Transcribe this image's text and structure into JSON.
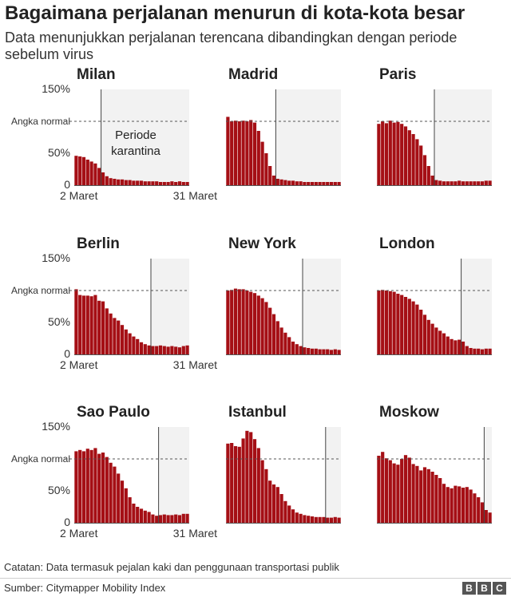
{
  "title": "Bagaimana perjalanan menurun di kota-kota besar",
  "subtitle": "Data menunjukkan perjalanan terencana dibandingkan dengan periode sebelum virus",
  "note": "Catatan: Data termasuk pejalan kaki dan penggunaan transportasi publik",
  "source": "Sumber: Citymapper Mobility Index",
  "logo": [
    "B",
    "B",
    "C"
  ],
  "colors": {
    "bar": "#a50f15",
    "shade": "#f2f2f2",
    "text": "#222222"
  },
  "chart_data": [
    {
      "type": "bar",
      "city": "Milan",
      "x_start": "2 Maret",
      "x_end": "31 Maret",
      "y_ticks": [
        "150%",
        "Angka normal",
        "50%",
        "0"
      ],
      "normal_level": 100,
      "ylim": [
        0,
        150
      ],
      "lockdown_day": 7,
      "annotation": [
        "Periode",
        "karantina"
      ],
      "values": [
        46,
        45,
        44,
        40,
        37,
        34,
        27,
        20,
        14,
        11,
        10,
        9,
        9,
        8,
        8,
        7,
        7,
        7,
        6,
        6,
        6,
        6,
        5,
        5,
        5,
        6,
        5,
        6,
        5,
        5
      ]
    },
    {
      "type": "bar",
      "city": "Madrid",
      "x_start": "",
      "x_end": "",
      "y_ticks": [],
      "normal_level": 100,
      "ylim": [
        0,
        150
      ],
      "lockdown_day": 13,
      "annotation": [],
      "values": [
        107,
        100,
        101,
        100,
        101,
        100,
        102,
        98,
        85,
        68,
        50,
        30,
        15,
        10,
        9,
        8,
        7,
        7,
        6,
        6,
        5,
        5,
        5,
        5,
        5,
        5,
        5,
        5,
        5,
        5
      ]
    },
    {
      "type": "bar",
      "city": "Paris",
      "x_start": "",
      "x_end": "",
      "y_ticks": [],
      "normal_level": 100,
      "ylim": [
        0,
        150
      ],
      "lockdown_day": 15,
      "annotation": [],
      "values": [
        96,
        100,
        97,
        101,
        98,
        99,
        96,
        92,
        86,
        80,
        72,
        62,
        47,
        30,
        15,
        8,
        7,
        6,
        6,
        6,
        6,
        7,
        6,
        6,
        6,
        6,
        6,
        6,
        7,
        7
      ]
    },
    {
      "type": "bar",
      "city": "Berlin",
      "x_start": "2 Maret",
      "x_end": "31 Maret",
      "y_ticks": [
        "150%",
        "Angka normal",
        "50%",
        "0"
      ],
      "normal_level": 100,
      "ylim": [
        0,
        150
      ],
      "lockdown_day": 20,
      "annotation": [],
      "values": [
        102,
        93,
        92,
        92,
        91,
        93,
        84,
        83,
        72,
        64,
        57,
        53,
        46,
        39,
        33,
        28,
        24,
        19,
        16,
        14,
        13,
        13,
        14,
        13,
        12,
        13,
        12,
        11,
        13,
        14
      ]
    },
    {
      "type": "bar",
      "city": "New York",
      "x_start": "",
      "x_end": "",
      "y_ticks": [],
      "normal_level": 100,
      "ylim": [
        0,
        150
      ],
      "lockdown_day": 20,
      "annotation": [],
      "values": [
        100,
        101,
        103,
        102,
        102,
        100,
        98,
        96,
        92,
        88,
        82,
        73,
        63,
        52,
        42,
        34,
        27,
        20,
        16,
        13,
        11,
        10,
        9,
        9,
        8,
        8,
        8,
        7,
        8,
        7
      ]
    },
    {
      "type": "bar",
      "city": "London",
      "x_start": "",
      "x_end": "",
      "y_ticks": [],
      "normal_level": 100,
      "ylim": [
        0,
        150
      ],
      "lockdown_day": 22,
      "annotation": [],
      "values": [
        100,
        101,
        100,
        99,
        98,
        95,
        93,
        90,
        87,
        83,
        78,
        70,
        62,
        54,
        48,
        42,
        37,
        33,
        28,
        24,
        22,
        23,
        20,
        13,
        10,
        9,
        9,
        8,
        9,
        9
      ]
    },
    {
      "type": "bar",
      "city": "Sao Paulo",
      "x_start": "2 Maret",
      "x_end": "31 Maret",
      "y_ticks": [
        "150%",
        "Angka normal",
        "50%",
        "0"
      ],
      "normal_level": 100,
      "ylim": [
        0,
        150
      ],
      "lockdown_day": 22,
      "annotation": [],
      "values": [
        112,
        114,
        112,
        116,
        114,
        117,
        108,
        110,
        103,
        94,
        88,
        77,
        66,
        54,
        40,
        30,
        25,
        22,
        19,
        17,
        13,
        11,
        12,
        13,
        12,
        12,
        13,
        12,
        14,
        14
      ]
    },
    {
      "type": "bar",
      "city": "Istanbul",
      "x_start": "",
      "x_end": "",
      "y_ticks": [],
      "normal_level": 100,
      "ylim": [
        0,
        150
      ],
      "lockdown_day": 26,
      "annotation": [],
      "values": [
        124,
        125,
        120,
        119,
        132,
        144,
        142,
        131,
        117,
        98,
        84,
        66,
        60,
        56,
        45,
        34,
        27,
        21,
        16,
        14,
        12,
        11,
        10,
        9,
        9,
        9,
        8,
        8,
        9,
        8
      ]
    },
    {
      "type": "bar",
      "city": "Moskow",
      "x_start": "",
      "x_end": "",
      "y_ticks": [],
      "normal_level": 100,
      "ylim": [
        0,
        150
      ],
      "lockdown_day": 28,
      "annotation": [],
      "values": [
        105,
        111,
        101,
        98,
        93,
        91,
        100,
        106,
        102,
        92,
        89,
        82,
        87,
        84,
        80,
        75,
        70,
        61,
        56,
        54,
        58,
        57,
        55,
        56,
        52,
        46,
        40,
        32,
        20,
        16
      ]
    }
  ]
}
